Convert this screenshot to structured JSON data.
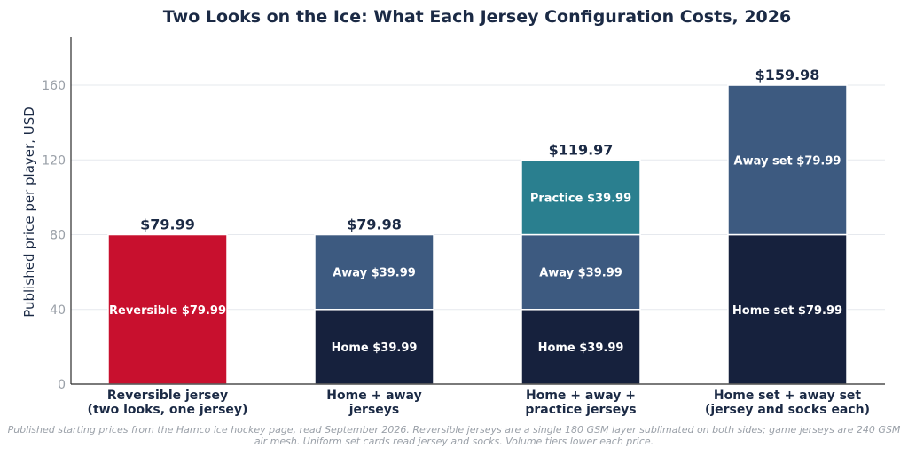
{
  "chart_data": {
    "type": "bar",
    "stacked": true,
    "title": "Two Looks on the Ice: What Each Jersey Configuration Costs, 2026",
    "ylabel": "Published price per player, USD",
    "xlabel": "",
    "ylim": [
      0,
      186
    ],
    "yticks": [
      0,
      40,
      80,
      120,
      160
    ],
    "grid": true,
    "categories": [
      "Reversible jersey\n(two looks, one jersey)",
      "Home + away\njerseys",
      "Home + away +\npractice jerseys",
      "Home set + away set\n(jersey and socks each)"
    ],
    "stacks": [
      {
        "total_label": "$79.99",
        "total": 79.99,
        "segments": [
          {
            "label": "Reversible $79.99",
            "value": 79.99,
            "color": "#c8102e"
          }
        ]
      },
      {
        "total_label": "$79.98",
        "total": 79.98,
        "segments": [
          {
            "label": "Home $39.99",
            "value": 39.99,
            "color": "#16213d"
          },
          {
            "label": "Away $39.99",
            "value": 39.99,
            "color": "#3d5a80"
          }
        ]
      },
      {
        "total_label": "$119.97",
        "total": 119.97,
        "segments": [
          {
            "label": "Home $39.99",
            "value": 39.99,
            "color": "#16213d"
          },
          {
            "label": "Away $39.99",
            "value": 39.99,
            "color": "#3d5a80"
          },
          {
            "label": "Practice $39.99",
            "value": 39.99,
            "color": "#2a7f8f"
          }
        ]
      },
      {
        "total_label": "$159.98",
        "total": 159.98,
        "segments": [
          {
            "label": "Home set $79.99",
            "value": 79.99,
            "color": "#16213d"
          },
          {
            "label": "Away set $79.99",
            "value": 79.99,
            "color": "#3d5a80"
          }
        ]
      }
    ]
  },
  "footnote": "Published starting prices from the Hamco ice hockey page, read September 2026. Reversible jerseys are a single 180 GSM layer sublimated on both sides; game jerseys are 240 GSM air mesh. Uniform set cards read jersey and socks. Volume tiers lower each price."
}
